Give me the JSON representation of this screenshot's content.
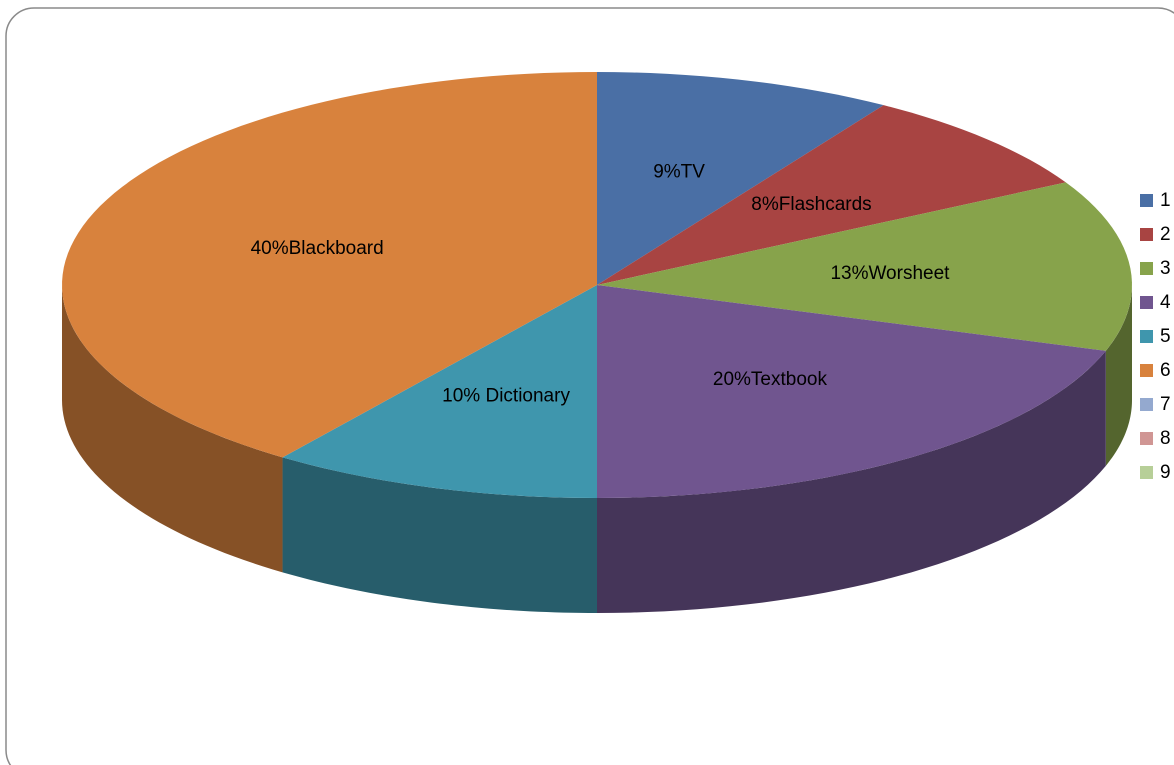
{
  "chart_data": {
    "type": "pie",
    "categories": [
      "1",
      "2",
      "3",
      "4",
      "5",
      "6",
      "7",
      "8",
      "9"
    ],
    "values": [
      9,
      8,
      13,
      20,
      10,
      40,
      null,
      null,
      null
    ],
    "value_labels": [
      "9%TV",
      "8%Flashcards",
      "13%Worsheet",
      "20%Textbook",
      "10% Dictionary",
      "40%Blackboard",
      null,
      null,
      null
    ],
    "colors": [
      "#4a6fa5",
      "#a84442",
      "#87a34b",
      "#70558f",
      "#3f96ad",
      "#d8823d",
      "#94a9cf",
      "#d09694",
      "#b7cf98"
    ],
    "legend": "right"
  }
}
